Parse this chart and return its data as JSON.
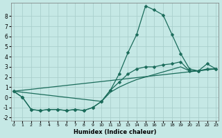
{
  "xlabel": "Humidex (Indice chaleur)",
  "bg_color": "#c5e8e5",
  "grid_color": "#aacfcc",
  "line_color": "#1a6b5a",
  "xlim": [
    -0.3,
    23.3
  ],
  "ylim": [
    -2.3,
    9.3
  ],
  "yticks": [
    -2,
    -1,
    0,
    1,
    2,
    3,
    4,
    5,
    6,
    7,
    8
  ],
  "xticks": [
    0,
    1,
    2,
    3,
    4,
    5,
    6,
    7,
    8,
    9,
    10,
    11,
    12,
    13,
    14,
    15,
    16,
    17,
    18,
    19,
    20,
    21,
    22,
    23
  ],
  "line1_x": [
    0,
    1,
    2,
    3,
    4,
    5,
    6,
    7,
    8,
    9,
    10,
    11,
    12,
    13,
    14,
    15,
    16,
    17,
    18,
    19,
    20,
    21,
    22,
    23
  ],
  "line1_y": [
    0.6,
    0.0,
    -1.2,
    -1.3,
    -1.2,
    -1.2,
    -1.3,
    -1.2,
    -1.3,
    -1.0,
    -0.4,
    0.7,
    2.3,
    4.4,
    6.2,
    9.0,
    8.6,
    8.1,
    6.2,
    4.3,
    2.8,
    2.6,
    3.3,
    2.8
  ],
  "line2_x": [
    0,
    1,
    2,
    3,
    4,
    5,
    6,
    7,
    8,
    9,
    10,
    11,
    12,
    13,
    14,
    15,
    16,
    17,
    18,
    19,
    20,
    21,
    22,
    23
  ],
  "line2_y": [
    0.6,
    0.0,
    -1.2,
    -1.3,
    -1.2,
    -1.2,
    -1.3,
    -1.2,
    -1.3,
    -1.0,
    -0.4,
    0.7,
    1.5,
    2.3,
    2.8,
    3.0,
    3.0,
    3.2,
    3.3,
    3.5,
    2.6,
    2.6,
    2.8,
    2.8
  ],
  "line3_x": [
    0,
    10,
    11,
    12,
    13,
    14,
    15,
    16,
    17,
    18,
    19,
    20,
    21,
    22,
    23
  ],
  "line3_y": [
    0.6,
    -0.4,
    0.5,
    1.0,
    1.4,
    1.75,
    2.0,
    2.25,
    2.5,
    2.75,
    3.0,
    2.6,
    2.6,
    2.75,
    2.8
  ],
  "line4_x": [
    0,
    23
  ],
  "line4_y": [
    0.6,
    2.8
  ]
}
